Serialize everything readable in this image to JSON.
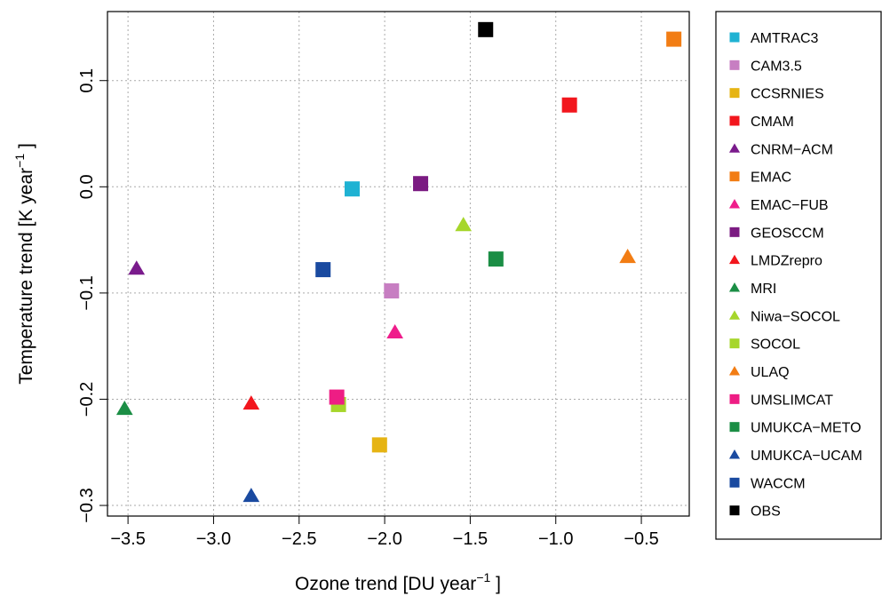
{
  "chart_data": {
    "type": "scatter",
    "xlabel": "Ozone trend  [DU year",
    "xlabel_sup": "−1",
    "xlabel_end": " ]",
    "ylabel": "Temperature trend  [K year",
    "ylabel_sup": "−1",
    "ylabel_end": " ]",
    "xlim": [
      -3.62,
      -0.22
    ],
    "ylim": [
      -0.31,
      0.165
    ],
    "xticks": [
      -3.5,
      -3.0,
      -2.5,
      -2.0,
      -1.5,
      -1.0,
      -0.5
    ],
    "xtick_labels": [
      "−3.5",
      "−3.0",
      "−2.5",
      "−2.0",
      "−1.5",
      "−1.0",
      "−0.5"
    ],
    "yticks": [
      -0.3,
      -0.2,
      -0.1,
      0.0,
      0.1
    ],
    "ytick_labels": [
      "−0.3",
      "−0.2",
      "−0.1",
      "0.0",
      "0.1"
    ],
    "grid": true,
    "legend_position": "right",
    "series": [
      {
        "name": "AMTRAC3",
        "marker": "square",
        "color": "#1fb2d3",
        "x": -2.19,
        "y": -0.002
      },
      {
        "name": "CAM3.5",
        "marker": "square",
        "color": "#c77ec2",
        "x": -1.96,
        "y": -0.098
      },
      {
        "name": "CCSRNIES",
        "marker": "square",
        "color": "#e6b413",
        "x": -2.03,
        "y": -0.243
      },
      {
        "name": "CMAM",
        "marker": "square",
        "color": "#f2161d",
        "x": -0.92,
        "y": 0.077
      },
      {
        "name": "CNRM−ACM",
        "marker": "triangle",
        "color": "#7a1b8c",
        "x": -3.45,
        "y": -0.077
      },
      {
        "name": "EMAC",
        "marker": "square",
        "color": "#f27d14",
        "x": -0.31,
        "y": 0.139
      },
      {
        "name": "EMAC−FUB",
        "marker": "triangle",
        "color": "#ef1d8b",
        "x": -1.94,
        "y": -0.137
      },
      {
        "name": "GEOSCCM",
        "marker": "square",
        "color": "#7b1b82",
        "x": -1.79,
        "y": 0.003
      },
      {
        "name": "LMDZrepro",
        "marker": "triangle",
        "color": "#f2161d",
        "x": -2.78,
        "y": -0.204
      },
      {
        "name": "MRI",
        "marker": "triangle",
        "color": "#1b8e45",
        "x": -3.52,
        "y": -0.209
      },
      {
        "name": "Niwa−SOCOL",
        "marker": "triangle",
        "color": "#a6d62b",
        "x": -1.54,
        "y": -0.036
      },
      {
        "name": "SOCOL",
        "marker": "square",
        "color": "#a6d62b",
        "x": -2.27,
        "y": -0.205
      },
      {
        "name": "ULAQ",
        "marker": "triangle",
        "color": "#f27d14",
        "x": -0.58,
        "y": -0.066
      },
      {
        "name": "UMSLIMCAT",
        "marker": "square",
        "color": "#ee1d84",
        "x": -2.28,
        "y": -0.198
      },
      {
        "name": "UMUKCA−METO",
        "marker": "square",
        "color": "#1b8e45",
        "x": -1.35,
        "y": -0.068
      },
      {
        "name": "UMUKCA−UCAM",
        "marker": "triangle",
        "color": "#1a4aa0",
        "x": -2.78,
        "y": -0.291
      },
      {
        "name": "WACCM",
        "marker": "square",
        "color": "#1a4aa0",
        "x": -2.36,
        "y": -0.078
      },
      {
        "name": "OBS",
        "marker": "square",
        "color": "#000000",
        "x": -1.41,
        "y": 0.148
      }
    ]
  }
}
